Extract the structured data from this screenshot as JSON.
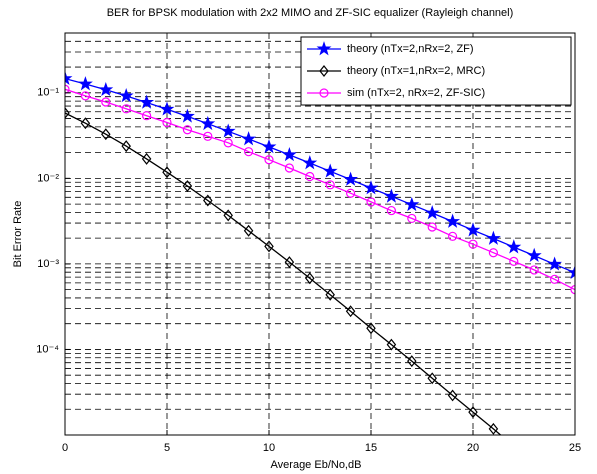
{
  "chart_data": {
    "type": "line",
    "title": "BER for BPSK modulation with 2x2 MIMO and ZF-SIC equalizer (Rayleigh channel)",
    "xlabel": "Average Eb/No,dB",
    "ylabel": "Bit Error Rate",
    "x": [
      0,
      1,
      2,
      3,
      4,
      5,
      6,
      7,
      8,
      9,
      10,
      11,
      12,
      13,
      14,
      15,
      16,
      17,
      18,
      19,
      20,
      21,
      22,
      23,
      24,
      25
    ],
    "series": [
      {
        "name": "theory (nTx=2,nRx=2, ZF)",
        "color": "#0000ff",
        "marker": "star",
        "values": [
          0.1464,
          0.1267,
          0.1085,
          0.0919,
          0.0771,
          0.0642,
          0.053,
          0.0435,
          0.0355,
          0.0288,
          0.0233,
          0.0188,
          0.0151,
          0.0121,
          0.0097,
          0.0077,
          0.00616,
          0.00492,
          0.00393,
          0.00313,
          0.00248,
          0.00198,
          0.00157,
          0.00125,
          0.00099,
          0.00079
        ]
      },
      {
        "name": "theory (nTx=1,nRx=2, MRC)",
        "color": "#000000",
        "marker": "diamond",
        "values": [
          0.058,
          0.0441,
          0.0328,
          0.0238,
          0.0169,
          0.0118,
          0.00813,
          0.00551,
          0.00369,
          0.00244,
          0.0016,
          0.00105,
          0.00068,
          0.000436,
          0.00028,
          0.000177,
          0.000114,
          7.3e-05,
          4.6e-05,
          2.9e-05,
          1.85e-05,
          1.18e-05,
          7.4e-06,
          null,
          null,
          null
        ]
      },
      {
        "name": "sim (nTx=2, nRx=2, ZF-SIC)",
        "color": "#ff00ff",
        "marker": "circle",
        "values": [
          0.11,
          0.092,
          0.078,
          0.065,
          0.054,
          0.045,
          0.037,
          0.031,
          0.026,
          0.0205,
          0.0165,
          0.0132,
          0.0105,
          0.0084,
          0.0067,
          0.0053,
          0.0042,
          0.0034,
          0.0027,
          0.0021,
          0.0017,
          0.00135,
          0.00107,
          0.00085,
          0.00066,
          0.0005
        ]
      }
    ],
    "xlim": [
      0,
      25
    ],
    "xticks": [
      0,
      5,
      10,
      15,
      20,
      25
    ],
    "ylim": [
      1e-05,
      0.5
    ],
    "log_y": true,
    "yticks": [
      {
        "value": 0.1,
        "label": "10⁻¹"
      },
      {
        "value": 0.01,
        "label": "10⁻²"
      },
      {
        "value": 0.001,
        "label": "10⁻³"
      },
      {
        "value": 0.0001,
        "label": "10⁻⁴"
      }
    ],
    "grid": true,
    "legend": "upper right"
  }
}
